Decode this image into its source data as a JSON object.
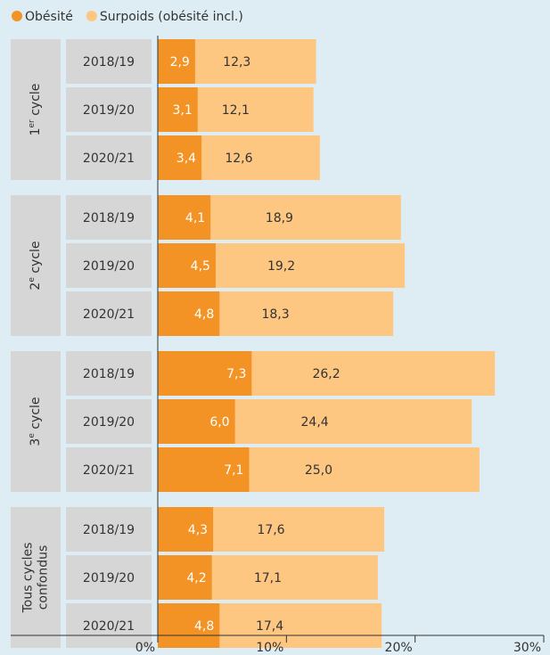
{
  "chart_data": {
    "type": "bar",
    "orientation": "horizontal",
    "overlap": true,
    "groups": [
      {
        "label": [
          "1",
          "er",
          " cycle"
        ],
        "size": 3
      },
      {
        "label": [
          "2",
          "e",
          " cycle"
        ],
        "size": 3
      },
      {
        "label": [
          "3",
          "e",
          " cycle"
        ],
        "size": 3
      },
      {
        "label": [
          "Tous cycles",
          "confondus"
        ],
        "size": 3
      }
    ],
    "categories": [
      "2018/19",
      "2019/20",
      "2020/21",
      "2018/19",
      "2019/20",
      "2020/21",
      "2018/19",
      "2019/20",
      "2020/21",
      "2018/19",
      "2019/20",
      "2020/21"
    ],
    "series": [
      {
        "name": "Surpoids (obésité incl.)",
        "color": "#fdc681",
        "values": [
          12.3,
          12.1,
          12.6,
          18.9,
          19.2,
          18.3,
          26.2,
          24.4,
          25.0,
          17.6,
          17.1,
          17.4
        ],
        "value_labels": [
          "12,3",
          "12,1",
          "12,6",
          "18,9",
          "19,2",
          "18,3",
          "26,2",
          "24,4",
          "25,0",
          "17,6",
          "17,1",
          "17,4"
        ]
      },
      {
        "name": "Obésité",
        "color": "#f39325",
        "values": [
          2.9,
          3.1,
          3.4,
          4.1,
          4.5,
          4.8,
          7.3,
          6.0,
          7.1,
          4.3,
          4.2,
          4.8
        ],
        "value_labels": [
          "2,9",
          "3,1",
          "3,4",
          "4,1",
          "4,5",
          "4,8",
          "7,3",
          "6,0",
          "7,1",
          "4,3",
          "4,2",
          "4,8"
        ]
      }
    ],
    "xlim": [
      0,
      30
    ],
    "xticks": [
      {
        "value": 0,
        "label": "0%"
      },
      {
        "value": 10,
        "label": "10%"
      },
      {
        "value": 20,
        "label": "20%"
      },
      {
        "value": 30,
        "label": "30%"
      }
    ],
    "legend": "top-left"
  }
}
